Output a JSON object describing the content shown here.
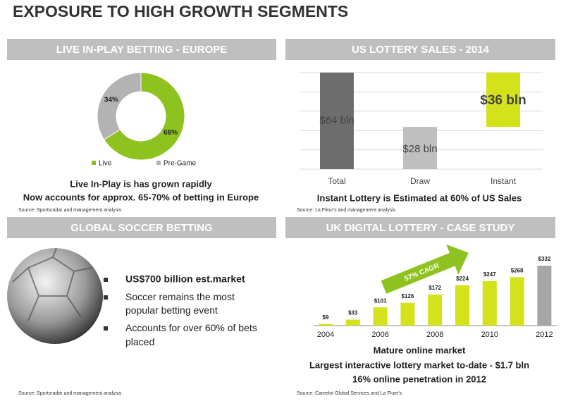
{
  "header": {
    "title": "EXPOSURE TO HIGH GROWTH SEGMENTS"
  },
  "panels": [
    {
      "title": "LIVE IN-PLAY BETTING - EUROPE",
      "notes": [
        "Live In-Play is has grown rapidly",
        "Now accounts for approx. 65-70% of betting in Europe"
      ],
      "source": "Source: Sportsradar and management analysis"
    },
    {
      "title": "US LOTTERY SALES - 2014",
      "notes": [
        "Instant Lottery is Estimated at 60% of US Sales"
      ],
      "source": "Source: La Fleur's and management analysis"
    },
    {
      "title": "GLOBAL SOCCER BETTING",
      "bullets": [
        "US$700 billion est.market",
        "Soccer remains the most popular betting event",
        "Accounts for over 60% of bets placed"
      ],
      "source": "Source: Sportsradar and management analysis"
    },
    {
      "title": "UK DIGITAL LOTTERY - CASE STUDY",
      "notes": [
        "Mature online market",
        "Largest interactive lottery market to-date - $1.7 bln",
        "16% online penetration in 2012"
      ],
      "source": "Source: Camelot Global Services and La Fluer's"
    }
  ],
  "chart_data": [
    {
      "type": "pie",
      "categories": [
        "Live",
        "Pre-Game"
      ],
      "values": [
        66,
        34
      ],
      "value_labels": [
        "66%",
        "34%"
      ],
      "colors": [
        "#8dc21f",
        "#b3b3b3"
      ]
    },
    {
      "type": "waterfall",
      "categories": [
        "Total",
        "Draw",
        "Instant"
      ],
      "values": [
        64,
        28,
        36
      ],
      "value_labels": [
        "$64 bln",
        "$28 bln",
        "$36 bln"
      ],
      "colors": [
        "#6d6d6d",
        "#bfbfbf",
        "#d4e21b"
      ],
      "ylim": [
        0,
        64
      ],
      "ygrid": [
        0,
        12.8,
        25.6,
        38.4,
        51.2,
        64
      ]
    },
    {
      "type": "bar",
      "categories": [
        "2004",
        null,
        "2006",
        null,
        "2008",
        null,
        "2010",
        null,
        "2012"
      ],
      "values": [
        9,
        33,
        101,
        126,
        172,
        224,
        247,
        268,
        332
      ],
      "value_labels": [
        "$9",
        "$33",
        "$101",
        "$126",
        "$172",
        "$224",
        "$247",
        "$268",
        "$332"
      ],
      "colors": [
        "#d4e21b",
        "#d4e21b",
        "#d4e21b",
        "#d4e21b",
        "#d4e21b",
        "#d4e21b",
        "#d4e21b",
        "#d4e21b",
        "#a6a6a6"
      ],
      "ylim": [
        0,
        332
      ],
      "annotation": "57% CAGR"
    }
  ]
}
